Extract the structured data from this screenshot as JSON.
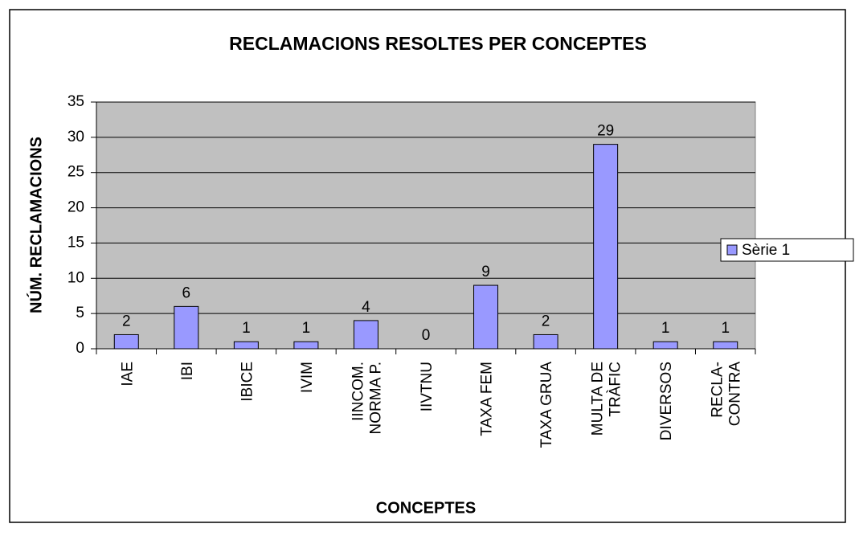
{
  "chart_data": {
    "type": "bar",
    "title": "RECLAMACIONS RESOLTES PER CONCEPTES",
    "x_label": "CONCEPTES",
    "y_label": "NÚM. RECLAMACIONS",
    "categories": [
      "IAE",
      "IBI",
      "IBICE",
      "IVIM",
      "IINCOM.\nNORMA P.",
      "IIVTNU",
      "TAXA FEM",
      "TAXA GRUA",
      "MULTA DE\nTRÀFIC",
      "DIVERSOS",
      "RECLA-\nCONTRA"
    ],
    "series": [
      {
        "name": "Sèrie 1",
        "color": "#9999ff",
        "values": [
          2,
          6,
          1,
          1,
          4,
          0,
          9,
          2,
          29,
          1,
          1
        ]
      }
    ],
    "ylim": [
      0,
      35
    ],
    "yticks": [
      0,
      5,
      10,
      15,
      20,
      25,
      30,
      35
    ],
    "grid": true,
    "legend": "right"
  }
}
